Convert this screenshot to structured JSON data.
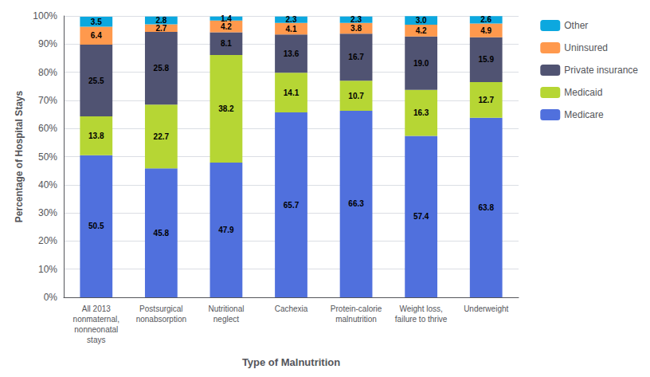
{
  "chart_data": {
    "type": "bar",
    "stacked": true,
    "categories": [
      "All 2013\nnonmaternal,\nnonneonatal\nstays",
      "Postsurgical\nnonabsorption",
      "Nutritional\nneglect",
      "Cachexia",
      "Protein-calorie\nmalnutrition",
      "Weight loss,\nfailure to thrive",
      "Underweight"
    ],
    "series": [
      {
        "name": "Medicare",
        "values": [
          50.5,
          45.8,
          47.9,
          65.7,
          66.3,
          57.4,
          63.8
        ],
        "value_labels": [
          "50.5",
          "45.8",
          "47.9",
          "65.7",
          "66.3",
          "57.4",
          "63.8"
        ]
      },
      {
        "name": "Medicaid",
        "values": [
          13.8,
          22.7,
          38.2,
          14.1,
          10.7,
          16.3,
          12.7
        ],
        "value_labels": [
          "13.8",
          "22.7",
          "38.2",
          "14.1",
          "10.7",
          "16.3",
          "12.7"
        ]
      },
      {
        "name": "Private insurance",
        "values": [
          25.5,
          25.8,
          8.1,
          13.6,
          16.7,
          19.0,
          15.9
        ],
        "value_labels": [
          "25.5",
          "25.8",
          "8.1",
          "13.6",
          "16.7",
          "19.0",
          "15.9"
        ]
      },
      {
        "name": "Uninsured",
        "values": [
          6.4,
          2.7,
          4.2,
          4.1,
          3.8,
          4.2,
          4.9
        ],
        "value_labels": [
          "6.4",
          "2.7",
          "4.2",
          "4.1",
          "3.8",
          "4.2",
          "4.9"
        ]
      },
      {
        "name": "Other",
        "values": [
          3.5,
          2.8,
          1.4,
          2.3,
          2.3,
          3.0,
          2.6
        ],
        "value_labels": [
          "3.5",
          "2.8",
          "1.4",
          "2.3",
          "2.3",
          "3.0",
          "2.6"
        ]
      }
    ],
    "legend_order": [
      "Other",
      "Uninsured",
      "Private insurance",
      "Medicaid",
      "Medicare"
    ],
    "xlabel": "Type of Malnutrition",
    "ylabel": "Percentage of Hospital Stays",
    "ylim": [
      0,
      100
    ],
    "yticks": [
      {
        "value": 0,
        "label": "0%"
      },
      {
        "value": 10,
        "label": "10%"
      },
      {
        "value": 20,
        "label": "20%"
      },
      {
        "value": 30,
        "label": "30%"
      },
      {
        "value": 40,
        "label": "40%"
      },
      {
        "value": 50,
        "label": "50%"
      },
      {
        "value": 60,
        "label": "60%"
      },
      {
        "value": 70,
        "label": "70%"
      },
      {
        "value": 80,
        "label": "80%"
      },
      {
        "value": 90,
        "label": "90%"
      },
      {
        "value": 100,
        "label": "100%"
      }
    ],
    "grid": true,
    "legend": "upper right",
    "data_labels": true
  }
}
